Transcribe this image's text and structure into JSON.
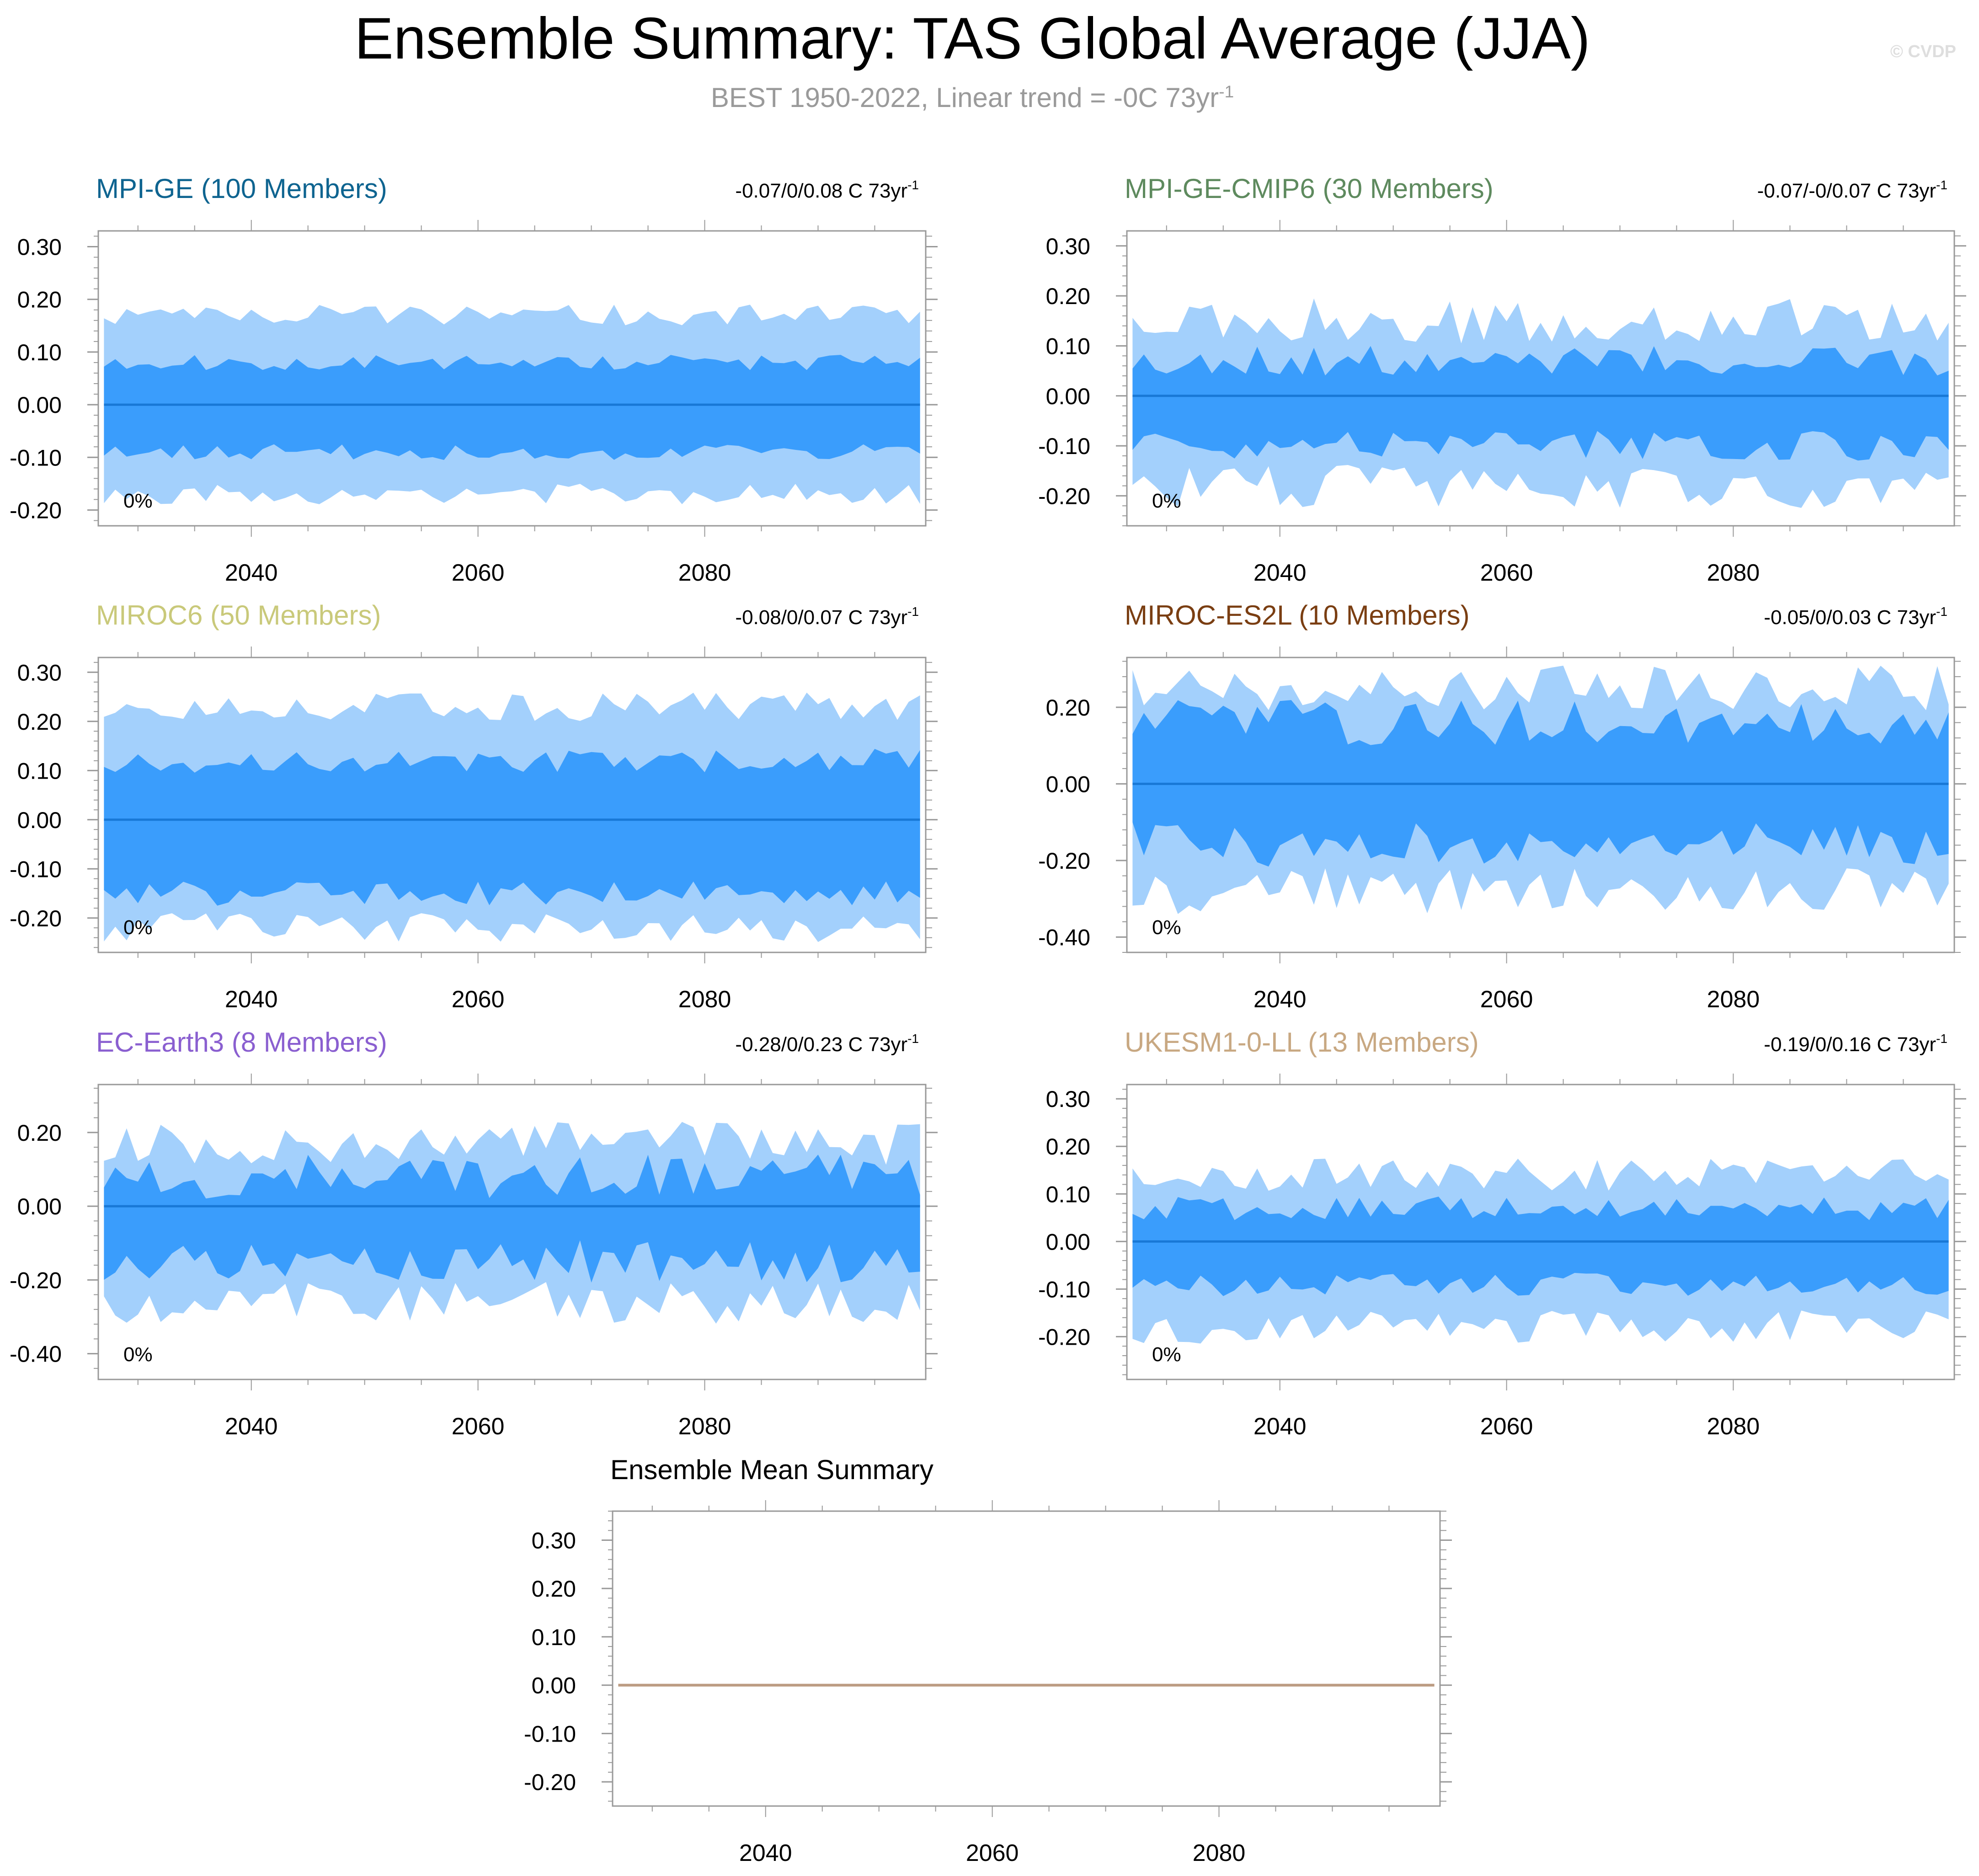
{
  "title": "Ensemble Summary: TAS Global Average (JJA)",
  "subtitle": {
    "text": "BEST 1950-2022, Linear trend = -0C 73yr",
    "exp": "-1"
  },
  "watermark": "© CVDP",
  "colors": {
    "outer_band": "#a3d0fc",
    "inner_band": "#3a9dfc",
    "mean_line": "#1878d6",
    "ensemble_mean_line": "#bc9c82",
    "axis": "#999999"
  },
  "chart_data": [
    {
      "type": "area",
      "title": "MPI-GE (100 Members)",
      "title_color": "#0e6490",
      "trend_range": "-0.07/0/0.08 C 73yr",
      "trend_exp": "-1",
      "percent_label": "0%",
      "x_start": 2027,
      "x_end": 2099,
      "xlim": [
        2026.5,
        2099.5
      ],
      "ylim": [
        -0.23,
        0.33
      ],
      "yticks": [
        -0.2,
        -0.1,
        0.0,
        0.1,
        0.2,
        0.3
      ],
      "ytick_labels": [
        "-0.20",
        "-0.10",
        "0.00",
        "0.10",
        "0.20",
        "0.30"
      ],
      "xticks": [
        2040,
        2060,
        2080
      ],
      "xtick_labels": [
        "2040",
        "2060",
        "2080"
      ],
      "mean_value": 0.0,
      "envelope": {
        "outer_hi": 0.17,
        "outer_lo": -0.17,
        "inner_hi": 0.08,
        "inner_lo": -0.09,
        "outer_var": 0.02,
        "inner_var": 0.015,
        "seed": 11
      }
    },
    {
      "type": "area",
      "title": "MPI-GE-CMIP6 (30 Members)",
      "title_color": "#5e8a5e",
      "trend_range": "-0.07/-0/0.07 C 73yr",
      "trend_exp": "-1",
      "percent_label": "0%",
      "x_start": 2027,
      "x_end": 2099,
      "xlim": [
        2026.5,
        2099.5
      ],
      "ylim": [
        -0.26,
        0.33
      ],
      "yticks": [
        -0.2,
        -0.1,
        0.0,
        0.1,
        0.2,
        0.3
      ],
      "ytick_labels": [
        "-0.20",
        "-0.10",
        "0.00",
        "0.10",
        "0.20",
        "0.30"
      ],
      "xticks": [
        2040,
        2060,
        2080
      ],
      "xtick_labels": [
        "2040",
        "2060",
        "2080"
      ],
      "mean_value": 0.0,
      "envelope": {
        "outer_hi": 0.15,
        "outer_lo": -0.18,
        "inner_hi": 0.07,
        "inner_lo": -0.1,
        "outer_var": 0.045,
        "inner_var": 0.03,
        "seed": 23
      }
    },
    {
      "type": "area",
      "title": "MIROC6 (50 Members)",
      "title_color": "#c9c97a",
      "trend_range": "-0.08/0/0.07 C 73yr",
      "trend_exp": "-1",
      "percent_label": "0%",
      "x_start": 2027,
      "x_end": 2099,
      "xlim": [
        2026.5,
        2099.5
      ],
      "ylim": [
        -0.27,
        0.33
      ],
      "yticks": [
        -0.2,
        -0.1,
        0.0,
        0.1,
        0.2,
        0.3
      ],
      "ytick_labels": [
        "-0.20",
        "-0.10",
        "0.00",
        "0.10",
        "0.20",
        "0.30"
      ],
      "xticks": [
        2040,
        2060,
        2080
      ],
      "xtick_labels": [
        "2040",
        "2060",
        "2080"
      ],
      "mean_value": 0.0,
      "envelope": {
        "outer_hi": 0.23,
        "outer_lo": -0.22,
        "inner_hi": 0.12,
        "inner_lo": -0.15,
        "outer_var": 0.03,
        "inner_var": 0.025,
        "seed": 37
      }
    },
    {
      "type": "area",
      "title": "MIROC-ES2L (10 Members)",
      "title_color": "#7a3e12",
      "trend_range": "-0.05/0/0.03 C 73yr",
      "trend_exp": "-1",
      "percent_label": "0%",
      "x_start": 2027,
      "x_end": 2099,
      "xlim": [
        2026.5,
        2099.5
      ],
      "ylim": [
        -0.44,
        0.33
      ],
      "yticks": [
        -0.4,
        -0.2,
        0.0,
        0.2
      ],
      "ytick_labels": [
        "-0.40",
        "-0.20",
        "0.00",
        "0.20"
      ],
      "xticks": [
        2040,
        2060,
        2080
      ],
      "xtick_labels": [
        "2040",
        "2060",
        "2080"
      ],
      "mean_value": 0.0,
      "envelope": {
        "outer_hi": 0.25,
        "outer_lo": -0.28,
        "inner_hi": 0.16,
        "inner_lo": -0.16,
        "outer_var": 0.06,
        "inner_var": 0.06,
        "seed": 41
      }
    },
    {
      "type": "area",
      "title": "EC-Earth3 (8 Members)",
      "title_color": "#8a5fd0",
      "trend_range": "-0.28/0/0.23 C 73yr",
      "trend_exp": "-1",
      "percent_label": "0%",
      "x_start": 2027,
      "x_end": 2099,
      "xlim": [
        2026.5,
        2099.5
      ],
      "ylim": [
        -0.47,
        0.33
      ],
      "yticks": [
        -0.4,
        -0.2,
        0.0,
        0.2
      ],
      "ytick_labels": [
        "-0.40",
        "-0.20",
        "0.00",
        "0.20"
      ],
      "xticks": [
        2040,
        2060,
        2080
      ],
      "xtick_labels": [
        "2040",
        "2060",
        "2080"
      ],
      "mean_value": 0.0,
      "envelope": {
        "outer_hi": 0.17,
        "outer_lo": -0.26,
        "inner_hi": 0.08,
        "inner_lo": -0.15,
        "outer_var": 0.06,
        "inner_var": 0.06,
        "seed": 53
      }
    },
    {
      "type": "area",
      "title": "UKESM1-0-LL (13 Members)",
      "title_color": "#c8a882",
      "trend_range": "-0.19/0/0.16 C 73yr",
      "trend_exp": "-1",
      "percent_label": "0%",
      "x_start": 2027,
      "x_end": 2099,
      "xlim": [
        2026.5,
        2099.5
      ],
      "ylim": [
        -0.29,
        0.33
      ],
      "yticks": [
        -0.2,
        -0.1,
        0.0,
        0.1,
        0.2,
        0.3
      ],
      "ytick_labels": [
        "-0.20",
        "-0.10",
        "0.00",
        "0.10",
        "0.20",
        "0.30"
      ],
      "xticks": [
        2040,
        2060,
        2080
      ],
      "xtick_labels": [
        "2040",
        "2060",
        "2080"
      ],
      "mean_value": 0.0,
      "envelope": {
        "outer_hi": 0.14,
        "outer_lo": -0.18,
        "inner_hi": 0.07,
        "inner_lo": -0.09,
        "outer_var": 0.035,
        "inner_var": 0.025,
        "seed": 67
      }
    },
    {
      "type": "line",
      "title": "Ensemble Mean Summary",
      "title_color": "#000000",
      "x_start": 2027,
      "x_end": 2099,
      "xlim": [
        2026.5,
        2099.5
      ],
      "ylim": [
        -0.25,
        0.36
      ],
      "yticks": [
        -0.2,
        -0.1,
        0.0,
        0.1,
        0.2,
        0.3
      ],
      "ytick_labels": [
        "-0.20",
        "-0.10",
        "0.00",
        "0.10",
        "0.20",
        "0.30"
      ],
      "xticks": [
        2040,
        2060,
        2080
      ],
      "xtick_labels": [
        "2040",
        "2060",
        "2080"
      ],
      "series": [
        {
          "name": "Ensemble Mean",
          "value": 0.0
        }
      ]
    }
  ]
}
